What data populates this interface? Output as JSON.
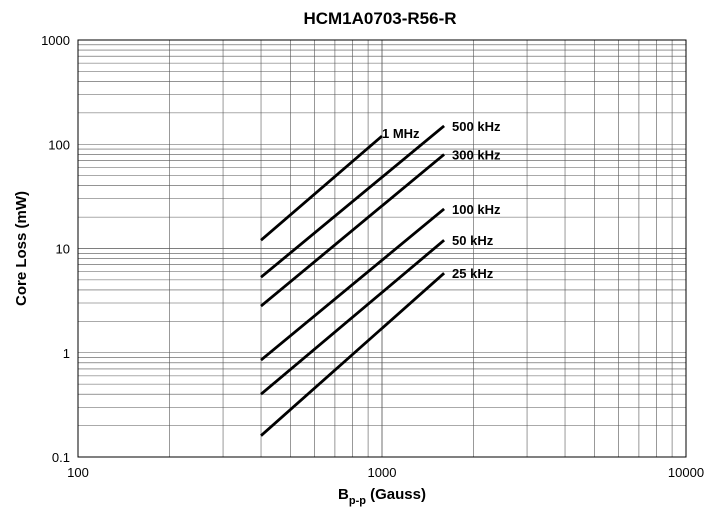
{
  "chart_data": {
    "type": "line",
    "title": "HCM1A0703-R56-R",
    "xlabel": {
      "main": "B",
      "sub": "p-p",
      "rest": " (Gauss)"
    },
    "ylabel": "Core Loss (mW)",
    "xscale": "log",
    "yscale": "log",
    "xlim": [
      100,
      10000
    ],
    "ylim": [
      0.1,
      1000
    ],
    "grid": true,
    "x_ticks": [
      "100",
      "1000",
      "10000"
    ],
    "y_ticks": [
      "0.1",
      "1",
      "10",
      "100",
      "1000"
    ],
    "series": [
      {
        "name": "1 MHz",
        "x": [
          400,
          1000
        ],
        "y": [
          12,
          120
        ]
      },
      {
        "name": "500 kHz",
        "x": [
          400,
          1600
        ],
        "y": [
          5.3,
          150
        ]
      },
      {
        "name": "300 kHz",
        "x": [
          400,
          1600
        ],
        "y": [
          2.8,
          80
        ]
      },
      {
        "name": "100 kHz",
        "x": [
          400,
          1600
        ],
        "y": [
          0.85,
          24
        ]
      },
      {
        "name": "50 kHz",
        "x": [
          400,
          1600
        ],
        "y": [
          0.4,
          12
        ]
      },
      {
        "name": "25 kHz",
        "x": [
          400,
          1600
        ],
        "y": [
          0.16,
          5.8
        ]
      }
    ]
  }
}
